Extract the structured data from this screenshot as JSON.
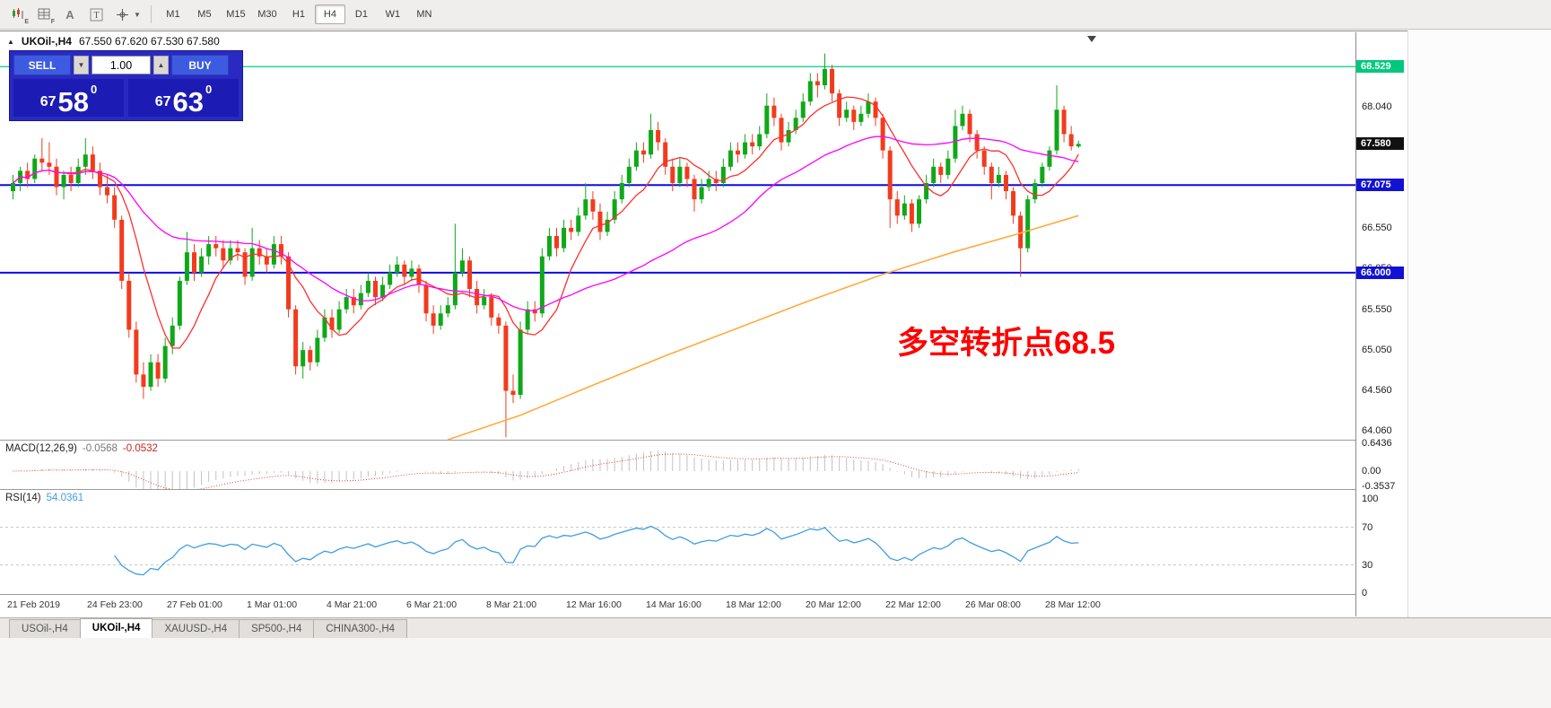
{
  "toolbar": {
    "icon_subletters": {
      "charts": "E",
      "grid": "F"
    },
    "timeframes": [
      {
        "label": "M1",
        "active": false
      },
      {
        "label": "M5",
        "active": false
      },
      {
        "label": "M15",
        "active": false
      },
      {
        "label": "M30",
        "active": false
      },
      {
        "label": "H1",
        "active": false
      },
      {
        "label": "H4",
        "active": true
      },
      {
        "label": "D1",
        "active": false
      },
      {
        "label": "W1",
        "active": false
      },
      {
        "label": "MN",
        "active": false
      }
    ]
  },
  "chart": {
    "collapse_marker": "▲",
    "symbol_title": "UKOil-,H4",
    "ohlc_title": "67.550 67.620 67.530 67.580",
    "annotation": {
      "text": "多空转折点68.5",
      "color": "#ff0000"
    }
  },
  "order_panel": {
    "sell_label": "SELL",
    "buy_label": "BUY",
    "lot_value": "1.00",
    "spin_down": "▼",
    "spin_up": "▲",
    "sell_price": {
      "base": "67",
      "big": "58",
      "sup": "0"
    },
    "buy_price": {
      "base": "67",
      "big": "63",
      "sup": "0"
    }
  },
  "price_axis": {
    "static_labels": [
      {
        "text": "68.040",
        "price": 68.04
      },
      {
        "text": "66.550",
        "price": 66.55
      },
      {
        "text": "66.050",
        "price": 66.05
      },
      {
        "text": "65.550",
        "price": 65.55
      },
      {
        "text": "65.050",
        "price": 65.05
      },
      {
        "text": "64.560",
        "price": 64.56
      },
      {
        "text": "64.060",
        "price": 64.06
      }
    ],
    "badges": [
      {
        "text": "68.529",
        "price": 68.529,
        "bg": "#00c87e",
        "fg": "#ffffff"
      },
      {
        "text": "67.580",
        "price": 67.58,
        "bg": "#111111",
        "fg": "#ffffff"
      },
      {
        "text": "67.075",
        "price": 67.075,
        "bg": "#1212d4",
        "fg": "#ffffff"
      },
      {
        "text": "66.000",
        "price": 66.0,
        "bg": "#1212d4",
        "fg": "#ffffff"
      }
    ]
  },
  "time_axis": {
    "labels": [
      "21 Feb 2019",
      "24 Feb 23:00",
      "27 Feb 01:00",
      "1 Mar 01:00",
      "4 Mar 21:00",
      "6 Mar 21:00",
      "8 Mar 21:00",
      "12 Mar 16:00",
      "14 Mar 16:00",
      "18 Mar 12:00",
      "20 Mar 12:00",
      "22 Mar 12:00",
      "26 Mar 08:00",
      "28 Mar 12:00"
    ]
  },
  "macd_panel": {
    "name": "MACD(12,26,9)",
    "value": "-0.0568",
    "signal_value": "-0.0532",
    "vmax": 0.6436,
    "vmin": -0.3537,
    "axis_labels": [
      {
        "text": "0.6436",
        "value": 0.6436
      },
      {
        "text": "0.00",
        "value": 0
      },
      {
        "text": "-0.3537",
        "value": -0.3537
      }
    ]
  },
  "rsi_panel": {
    "name": "RSI(14)",
    "value": "54.0361",
    "levels": [
      70,
      30
    ],
    "axis_labels": [
      {
        "text": "100",
        "value": 100
      },
      {
        "text": "70",
        "value": 70
      },
      {
        "text": "30",
        "value": 30
      },
      {
        "text": "0",
        "value": 0
      }
    ]
  },
  "tabs": [
    {
      "label": "USOil-,H4",
      "active": false
    },
    {
      "label": "UKOil-,H4",
      "active": true
    },
    {
      "label": "XAUUSD-,H4",
      "active": false
    },
    {
      "label": "SP500-,H4",
      "active": false
    },
    {
      "label": "CHINA300-,H4",
      "active": false
    }
  ],
  "chart_data": {
    "type": "candlestick",
    "symbol": "UKOil-",
    "timeframe": "H4",
    "price_max_view": 68.95,
    "price_min_view": 63.95,
    "up_color": "#0fa818",
    "down_color": "#f23b1d",
    "hlines": [
      {
        "price": 68.529,
        "color": "#00cd82",
        "width": 1.2
      },
      {
        "price": 67.075,
        "color": "#0b0be6",
        "width": 2
      },
      {
        "price": 66.0,
        "color": "#0b0be6",
        "width": 2
      }
    ],
    "moving_averages": [
      {
        "period": 8,
        "color": "#ff2f2f",
        "type": "sma"
      },
      {
        "period": 34,
        "color": "#ff00ff",
        "type": "sma"
      }
    ],
    "overlay_line": {
      "color": "#ffab3c",
      "points": [
        [
          60,
          63.95
        ],
        [
          70,
          64.25
        ],
        [
          80,
          64.62
        ],
        [
          90,
          64.98
        ],
        [
          100,
          65.32
        ],
        [
          110,
          65.66
        ],
        [
          120,
          65.98
        ],
        [
          130,
          66.26
        ],
        [
          138,
          66.46
        ],
        [
          147,
          66.7
        ]
      ]
    },
    "indicators": {
      "macd": {
        "fast": 12,
        "slow": 26,
        "signal": 9
      },
      "rsi": {
        "period": 14
      }
    },
    "ohlc": [
      [
        67.0,
        67.2,
        66.9,
        67.1
      ],
      [
        67.1,
        67.3,
        67.0,
        67.25
      ],
      [
        67.25,
        67.35,
        67.05,
        67.15
      ],
      [
        67.15,
        67.45,
        67.1,
        67.4
      ],
      [
        67.4,
        67.65,
        67.25,
        67.35
      ],
      [
        67.35,
        67.6,
        67.2,
        67.3
      ],
      [
        67.3,
        67.4,
        66.95,
        67.05
      ],
      [
        67.05,
        67.25,
        66.9,
        67.2
      ],
      [
        67.2,
        67.3,
        67.0,
        67.1
      ],
      [
        67.1,
        67.4,
        67.05,
        67.3
      ],
      [
        67.3,
        67.65,
        67.2,
        67.45
      ],
      [
        67.45,
        67.55,
        67.15,
        67.25
      ],
      [
        67.25,
        67.35,
        66.95,
        67.05
      ],
      [
        67.05,
        67.2,
        66.85,
        66.95
      ],
      [
        66.95,
        67.05,
        66.55,
        66.65
      ],
      [
        66.65,
        66.7,
        65.8,
        65.9
      ],
      [
        65.9,
        66.0,
        65.2,
        65.3
      ],
      [
        65.3,
        65.4,
        64.65,
        64.75
      ],
      [
        64.75,
        64.9,
        64.45,
        64.6
      ],
      [
        64.6,
        65.0,
        64.55,
        64.9
      ],
      [
        64.9,
        65.0,
        64.6,
        64.7
      ],
      [
        64.7,
        65.2,
        64.65,
        65.1
      ],
      [
        65.1,
        65.45,
        65.0,
        65.35
      ],
      [
        65.35,
        65.95,
        65.3,
        65.9
      ],
      [
        65.9,
        66.5,
        65.85,
        66.25
      ],
      [
        66.25,
        66.35,
        65.9,
        66.0
      ],
      [
        66.0,
        66.3,
        65.95,
        66.2
      ],
      [
        66.2,
        66.45,
        66.1,
        66.35
      ],
      [
        66.35,
        66.45,
        66.2,
        66.3
      ],
      [
        66.3,
        66.4,
        66.05,
        66.15
      ],
      [
        66.15,
        66.4,
        66.1,
        66.3
      ],
      [
        66.3,
        66.4,
        66.15,
        66.25
      ],
      [
        66.25,
        66.3,
        65.85,
        65.95
      ],
      [
        65.95,
        66.55,
        65.9,
        66.3
      ],
      [
        66.3,
        66.4,
        66.1,
        66.2
      ],
      [
        66.2,
        66.3,
        66.0,
        66.1
      ],
      [
        66.1,
        66.45,
        66.05,
        66.35
      ],
      [
        66.35,
        66.45,
        66.1,
        66.2
      ],
      [
        66.2,
        66.25,
        65.45,
        65.55
      ],
      [
        65.55,
        65.6,
        64.75,
        64.85
      ],
      [
        64.85,
        65.15,
        64.7,
        65.05
      ],
      [
        65.05,
        65.1,
        64.8,
        64.9
      ],
      [
        64.9,
        65.3,
        64.85,
        65.2
      ],
      [
        65.2,
        65.55,
        65.15,
        65.45
      ],
      [
        65.45,
        65.55,
        65.2,
        65.3
      ],
      [
        65.3,
        65.65,
        65.25,
        65.55
      ],
      [
        65.55,
        65.8,
        65.5,
        65.7
      ],
      [
        65.7,
        65.8,
        65.5,
        65.6
      ],
      [
        65.6,
        65.85,
        65.55,
        65.75
      ],
      [
        65.75,
        66.0,
        65.7,
        65.9
      ],
      [
        65.9,
        65.95,
        65.6,
        65.7
      ],
      [
        65.7,
        65.95,
        65.65,
        65.85
      ],
      [
        65.85,
        66.1,
        65.8,
        66.0
      ],
      [
        66.0,
        66.2,
        65.95,
        66.1
      ],
      [
        66.1,
        66.15,
        65.85,
        65.95
      ],
      [
        65.95,
        66.15,
        65.9,
        66.05
      ],
      [
        66.05,
        66.1,
        65.75,
        65.85
      ],
      [
        65.85,
        65.9,
        65.4,
        65.5
      ],
      [
        65.5,
        65.6,
        65.25,
        65.35
      ],
      [
        65.35,
        65.6,
        65.3,
        65.5
      ],
      [
        65.5,
        65.7,
        65.45,
        65.6
      ],
      [
        65.6,
        66.6,
        65.55,
        66.0
      ],
      [
        66.0,
        66.3,
        65.95,
        66.15
      ],
      [
        66.15,
        66.2,
        65.7,
        65.8
      ],
      [
        65.8,
        65.9,
        65.5,
        65.6
      ],
      [
        65.6,
        65.8,
        65.55,
        65.7
      ],
      [
        65.7,
        65.75,
        65.35,
        65.45
      ],
      [
        65.45,
        65.5,
        65.25,
        65.35
      ],
      [
        65.35,
        65.4,
        63.98,
        64.55
      ],
      [
        64.55,
        64.75,
        64.4,
        64.5
      ],
      [
        64.5,
        65.4,
        64.45,
        65.3
      ],
      [
        65.3,
        65.65,
        65.25,
        65.55
      ],
      [
        65.55,
        65.65,
        65.4,
        65.5
      ],
      [
        65.5,
        66.3,
        65.45,
        66.2
      ],
      [
        66.2,
        66.55,
        66.15,
        66.45
      ],
      [
        66.45,
        66.55,
        66.2,
        66.3
      ],
      [
        66.3,
        66.65,
        66.25,
        66.55
      ],
      [
        66.55,
        66.65,
        66.4,
        66.5
      ],
      [
        66.5,
        66.8,
        66.45,
        66.7
      ],
      [
        66.7,
        67.1,
        66.65,
        66.9
      ],
      [
        66.9,
        67.0,
        66.65,
        66.75
      ],
      [
        66.75,
        66.85,
        66.4,
        66.5
      ],
      [
        66.5,
        66.75,
        66.45,
        66.65
      ],
      [
        66.65,
        67.0,
        66.6,
        66.9
      ],
      [
        66.9,
        67.2,
        66.85,
        67.1
      ],
      [
        67.1,
        67.4,
        67.05,
        67.3
      ],
      [
        67.3,
        67.6,
        67.25,
        67.5
      ],
      [
        67.5,
        67.6,
        67.35,
        67.45
      ],
      [
        67.45,
        67.95,
        67.4,
        67.75
      ],
      [
        67.75,
        67.85,
        67.5,
        67.6
      ],
      [
        67.6,
        67.65,
        67.2,
        67.3
      ],
      [
        67.3,
        67.4,
        67.0,
        67.1
      ],
      [
        67.1,
        67.4,
        67.05,
        67.3
      ],
      [
        67.3,
        67.35,
        67.05,
        67.15
      ],
      [
        67.15,
        67.2,
        66.75,
        66.9
      ],
      [
        66.9,
        67.15,
        66.85,
        67.05
      ],
      [
        67.05,
        67.25,
        67.0,
        67.15
      ],
      [
        67.15,
        67.25,
        67.0,
        67.1
      ],
      [
        67.1,
        67.4,
        67.05,
        67.3
      ],
      [
        67.3,
        67.6,
        67.25,
        67.5
      ],
      [
        67.5,
        67.6,
        67.35,
        67.45
      ],
      [
        67.45,
        67.7,
        67.4,
        67.6
      ],
      [
        67.6,
        67.7,
        67.45,
        67.55
      ],
      [
        67.55,
        67.8,
        67.5,
        67.7
      ],
      [
        67.7,
        68.2,
        67.65,
        68.05
      ],
      [
        68.05,
        68.15,
        67.8,
        67.9
      ],
      [
        67.9,
        67.95,
        67.5,
        67.6
      ],
      [
        67.6,
        67.85,
        67.55,
        67.75
      ],
      [
        67.75,
        68.0,
        67.7,
        67.9
      ],
      [
        67.9,
        68.2,
        67.85,
        68.1
      ],
      [
        68.1,
        68.45,
        68.05,
        68.35
      ],
      [
        68.35,
        68.45,
        68.15,
        68.3
      ],
      [
        68.3,
        68.69,
        68.25,
        68.5
      ],
      [
        68.5,
        68.55,
        68.1,
        68.2
      ],
      [
        68.2,
        68.25,
        67.8,
        67.9
      ],
      [
        67.9,
        68.1,
        67.85,
        68.0
      ],
      [
        68.0,
        68.05,
        67.75,
        67.85
      ],
      [
        67.85,
        68.05,
        67.8,
        67.95
      ],
      [
        67.95,
        68.2,
        67.9,
        68.1
      ],
      [
        68.1,
        68.15,
        67.8,
        67.9
      ],
      [
        67.9,
        67.95,
        67.4,
        67.5
      ],
      [
        67.5,
        67.55,
        66.55,
        66.9
      ],
      [
        66.9,
        67.0,
        66.6,
        66.7
      ],
      [
        66.7,
        66.95,
        66.65,
        66.85
      ],
      [
        66.85,
        66.9,
        66.5,
        66.6
      ],
      [
        66.6,
        66.95,
        66.55,
        66.9
      ],
      [
        66.9,
        67.2,
        66.85,
        67.1
      ],
      [
        67.1,
        67.4,
        67.05,
        67.3
      ],
      [
        67.3,
        67.35,
        67.1,
        67.2
      ],
      [
        67.2,
        67.5,
        67.15,
        67.4
      ],
      [
        67.4,
        68.0,
        67.35,
        67.8
      ],
      [
        67.8,
        68.05,
        67.75,
        67.95
      ],
      [
        67.95,
        68.0,
        67.6,
        67.7
      ],
      [
        67.7,
        67.75,
        67.4,
        67.5
      ],
      [
        67.5,
        67.55,
        67.2,
        67.3
      ],
      [
        67.3,
        67.35,
        66.9,
        67.1
      ],
      [
        67.1,
        67.3,
        67.05,
        67.2
      ],
      [
        67.2,
        67.25,
        66.9,
        67.0
      ],
      [
        67.0,
        67.05,
        66.6,
        66.7
      ],
      [
        66.7,
        66.75,
        65.95,
        66.3
      ],
      [
        66.3,
        66.95,
        66.25,
        66.9
      ],
      [
        66.9,
        67.15,
        66.85,
        67.1
      ],
      [
        67.1,
        67.35,
        67.05,
        67.3
      ],
      [
        67.3,
        67.55,
        67.25,
        67.5
      ],
      [
        67.5,
        68.3,
        67.45,
        68.0
      ],
      [
        68.0,
        68.05,
        67.6,
        67.7
      ],
      [
        67.7,
        67.8,
        67.5,
        67.55
      ],
      [
        67.55,
        67.62,
        67.53,
        67.58
      ]
    ]
  }
}
